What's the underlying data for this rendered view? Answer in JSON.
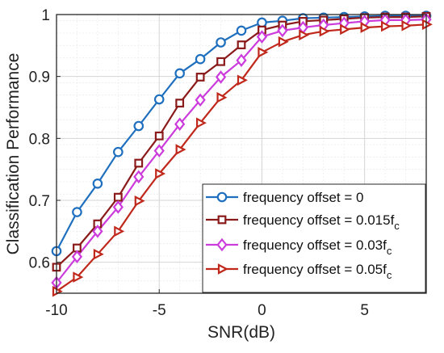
{
  "chart_data": {
    "type": "line",
    "xlabel": "SNR(dB)",
    "ylabel": "Classification Performance",
    "xlim": [
      -10,
      8
    ],
    "ylim": [
      0.55,
      1.0
    ],
    "x_ticks": [
      -10,
      -5,
      0,
      5
    ],
    "x_tick_labels": [
      "-10",
      "-5",
      "0",
      "5"
    ],
    "y_ticks": [
      0.6,
      0.7,
      0.8,
      0.9,
      1.0
    ],
    "y_tick_labels": [
      "0.6",
      "0.7",
      "0.8",
      "0.9",
      "1"
    ],
    "grid": "on (major and minor)",
    "legend_position": "lower-right",
    "x": [
      -10,
      -9,
      -8,
      -7,
      -6,
      -5,
      -4,
      -3,
      -2,
      -1,
      0,
      1,
      2,
      3,
      4,
      5,
      6,
      7,
      8
    ],
    "series": [
      {
        "name": "frequency offset = 0",
        "legend_main": "frequency offset = 0",
        "legend_sub": "",
        "color": "#1f6fbf",
        "marker": "circle",
        "values": [
          0.618,
          0.681,
          0.727,
          0.778,
          0.82,
          0.863,
          0.905,
          0.928,
          0.955,
          0.974,
          0.987,
          0.99,
          0.994,
          0.995,
          0.996,
          0.997,
          0.998,
          0.998,
          0.998
        ]
      },
      {
        "name": "frequency offset = 0.015fc",
        "legend_main": "frequency offset = 0.015f",
        "legend_sub": "c",
        "color": "#8b1a1a",
        "marker": "square",
        "values": [
          0.592,
          0.623,
          0.662,
          0.705,
          0.76,
          0.804,
          0.857,
          0.899,
          0.924,
          0.951,
          0.975,
          0.983,
          0.989,
          0.991,
          0.993,
          0.995,
          0.996,
          0.996,
          0.997
        ]
      },
      {
        "name": "frequency offset = 0.03fc",
        "legend_main": "frequency offset = 0.03f",
        "legend_sub": "c",
        "color": "#cc3bdc",
        "marker": "diamond",
        "values": [
          0.567,
          0.609,
          0.65,
          0.689,
          0.738,
          0.78,
          0.823,
          0.862,
          0.899,
          0.926,
          0.964,
          0.974,
          0.979,
          0.983,
          0.986,
          0.989,
          0.991,
          0.991,
          0.992
        ]
      },
      {
        "name": "frequency offset = 0.05fc",
        "legend_main": "frequency offset = 0.05f",
        "legend_sub": "c",
        "color": "#c0281c",
        "marker": "triangle-right",
        "values": [
          0.553,
          0.576,
          0.613,
          0.65,
          0.699,
          0.743,
          0.782,
          0.825,
          0.866,
          0.894,
          0.939,
          0.956,
          0.967,
          0.973,
          0.976,
          0.979,
          0.981,
          0.982,
          0.984
        ]
      }
    ]
  }
}
